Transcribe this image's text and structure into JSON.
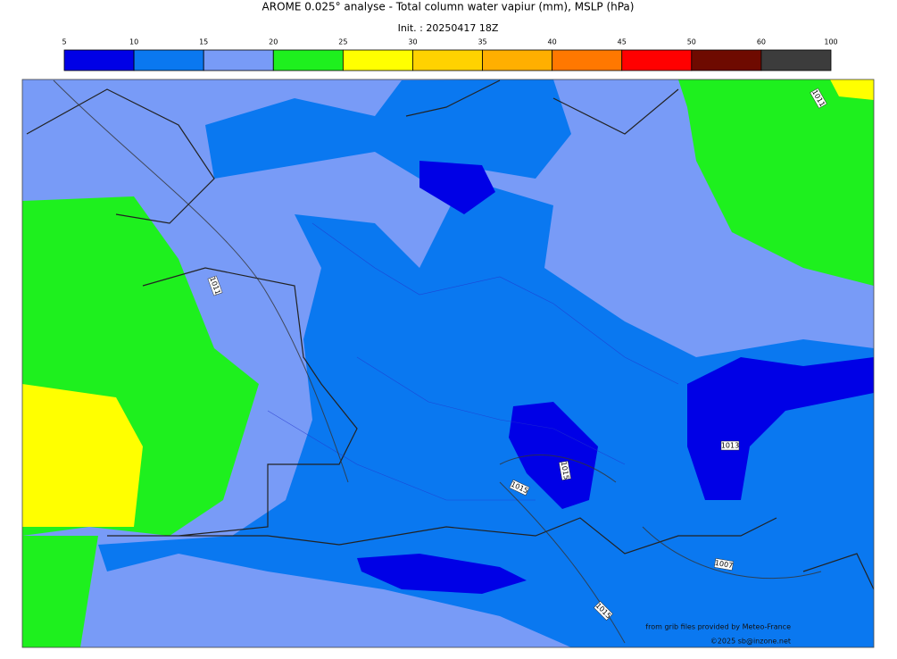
{
  "header": {
    "title": "AROME 0.025° analyse - Total column water vapiur (mm), MSLP (hPa)",
    "init": "Init. : 20250417 18Z"
  },
  "colorbar": {
    "ticks": [
      5,
      10,
      15,
      20,
      25,
      30,
      35,
      40,
      45,
      50,
      60,
      100
    ],
    "colors": [
      "#0000e6",
      "#0a78f0",
      "#789bf7",
      "#1ef01e",
      "#ffff00",
      "#ffd200",
      "#ffaf00",
      "#ff7800",
      "#ff0000",
      "#6e0a00",
      "#3c3c3c"
    ]
  },
  "contour_labels": [
    "1011",
    "1011",
    "1015",
    "1015",
    "1013",
    "1007",
    "1015"
  ],
  "credits": [
    "from grib files provided by Meteo-France",
    "©2025 sb@inzone.net"
  ]
}
